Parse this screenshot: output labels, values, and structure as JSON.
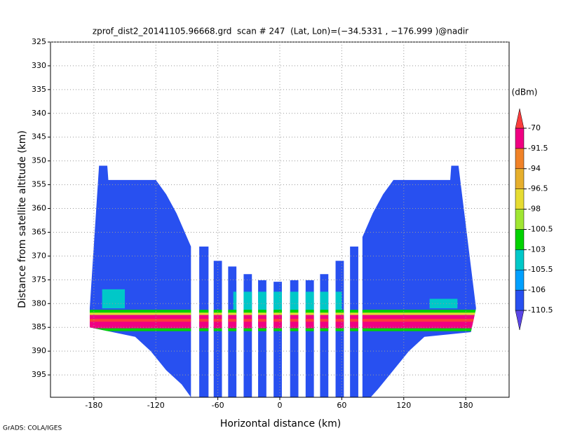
{
  "chart_data": {
    "type": "shaded",
    "title": "zprof_dist2_20141105.96668.grd  scan # 247  (Lat, Lon)=(−34.5331 , −176.999 )@nadir",
    "xlabel": "Horizontal distance (km)",
    "ylabel": "Distance from satellite altitude (km)",
    "credit": "GrADS: COLA/IGES",
    "xlim": [
      -222,
      222
    ],
    "ylim": [
      399.7,
      325
    ],
    "xticks": [
      -180,
      -120,
      -60,
      0,
      60,
      120,
      180
    ],
    "yticks": [
      325,
      330,
      335,
      340,
      345,
      350,
      355,
      360,
      365,
      370,
      375,
      380,
      385,
      390,
      395
    ],
    "grid": true,
    "colorbar": {
      "label": "(dBm)",
      "levels": [
        -110.5,
        -106,
        -105.5,
        -103,
        -100.5,
        -98,
        -96.5,
        -94,
        -91.5,
        -70
      ],
      "colors": [
        "#5a46e6",
        "#2850f0",
        "#00a0ff",
        "#00c8c8",
        "#00d200",
        "#a0e632",
        "#e6dc32",
        "#e6af2d",
        "#f08228",
        "#f00082",
        "#fa3c3c"
      ]
    },
    "swath": [
      {
        "value": -108,
        "x": [
          -184,
          -175,
          -167,
          -166,
          -120,
          -110,
          -100,
          -92,
          -86,
          -86,
          -95,
          -110,
          -125,
          -140,
          -184
        ],
        "y": [
          381,
          351,
          351,
          354,
          354,
          357,
          361,
          365,
          368,
          399.7,
          397,
          394,
          390,
          387,
          385
        ]
      },
      {
        "value": -108,
        "x": [
          80,
          90,
          100,
          110,
          165,
          166,
          173,
          190,
          185,
          140,
          125,
          110,
          95,
          88,
          80
        ],
        "y": [
          366,
          361,
          357,
          354,
          354,
          351,
          351,
          381,
          386,
          387,
          390,
          394,
          398,
          399.7,
          399.7
        ]
      },
      {
        "value": -108,
        "x": [
          -78,
          -69,
          -69,
          -78
        ],
        "y": [
          368,
          368,
          399.7,
          399.7
        ]
      },
      {
        "value": -108,
        "x": [
          -64,
          -56,
          -56,
          -64
        ],
        "y": [
          371,
          371,
          399.7,
          399.7
        ]
      },
      {
        "value": -108,
        "x": [
          -50,
          -42,
          -42,
          -50
        ],
        "y": [
          372.2,
          372.2,
          399.7,
          399.7
        ]
      },
      {
        "value": -108,
        "x": [
          -35,
          -27,
          -27,
          -35
        ],
        "y": [
          373.8,
          373.8,
          399.7,
          399.7
        ]
      },
      {
        "value": -108,
        "x": [
          -21,
          -13,
          -13,
          -21
        ],
        "y": [
          375.1,
          375.1,
          399.7,
          399.7
        ]
      },
      {
        "value": -108,
        "x": [
          -6,
          2,
          2,
          -6
        ],
        "y": [
          375.4,
          375.4,
          399.7,
          399.7
        ]
      },
      {
        "value": -108,
        "x": [
          10,
          18,
          18,
          10
        ],
        "y": [
          375.1,
          375.1,
          399.7,
          399.7
        ]
      },
      {
        "value": -108,
        "x": [
          25,
          33,
          33,
          25
        ],
        "y": [
          375.1,
          375.1,
          399.7,
          399.7
        ]
      },
      {
        "value": -108,
        "x": [
          39,
          47,
          47,
          39
        ],
        "y": [
          373.8,
          373.8,
          399.7,
          399.7
        ]
      },
      {
        "value": -108,
        "x": [
          54,
          62,
          62,
          54
        ],
        "y": [
          371,
          371,
          399.7,
          399.7
        ]
      },
      {
        "value": -108,
        "x": [
          68,
          76,
          76,
          68
        ],
        "y": [
          368,
          368,
          399.7,
          399.7
        ]
      }
    ],
    "echoes": [
      {
        "value": -105,
        "x": [
          -172,
          -150,
          -150,
          -172
        ],
        "y": [
          377,
          377,
          381,
          381
        ]
      },
      {
        "value": -105,
        "x": [
          145,
          172,
          172,
          145
        ],
        "y": [
          379,
          379,
          381,
          381
        ]
      },
      {
        "value": -105,
        "x": [
          -45,
          60,
          60,
          -45
        ],
        "y": [
          377.5,
          377.5,
          382,
          382
        ]
      },
      {
        "value": -102,
        "x": [
          -184,
          190,
          190,
          -184
        ],
        "y": [
          381.3,
          381.3,
          382.2,
          382.2
        ]
      },
      {
        "value": -97,
        "x": [
          -184,
          190,
          190,
          -184
        ],
        "y": [
          381.9,
          381.9,
          382.4,
          382.4
        ]
      },
      {
        "value": -80,
        "x": [
          -184,
          190,
          190,
          -184
        ],
        "y": [
          382.4,
          382.4,
          385.2,
          385.2
        ]
      },
      {
        "value": -65,
        "x": [
          -184,
          190,
          190,
          -184
        ],
        "y": [
          383.2,
          383.2,
          383.8,
          383.8
        ]
      },
      {
        "value": -102,
        "x": [
          -184,
          190,
          190,
          -184
        ],
        "y": [
          385.2,
          385.2,
          385.8,
          385.8
        ]
      }
    ]
  }
}
